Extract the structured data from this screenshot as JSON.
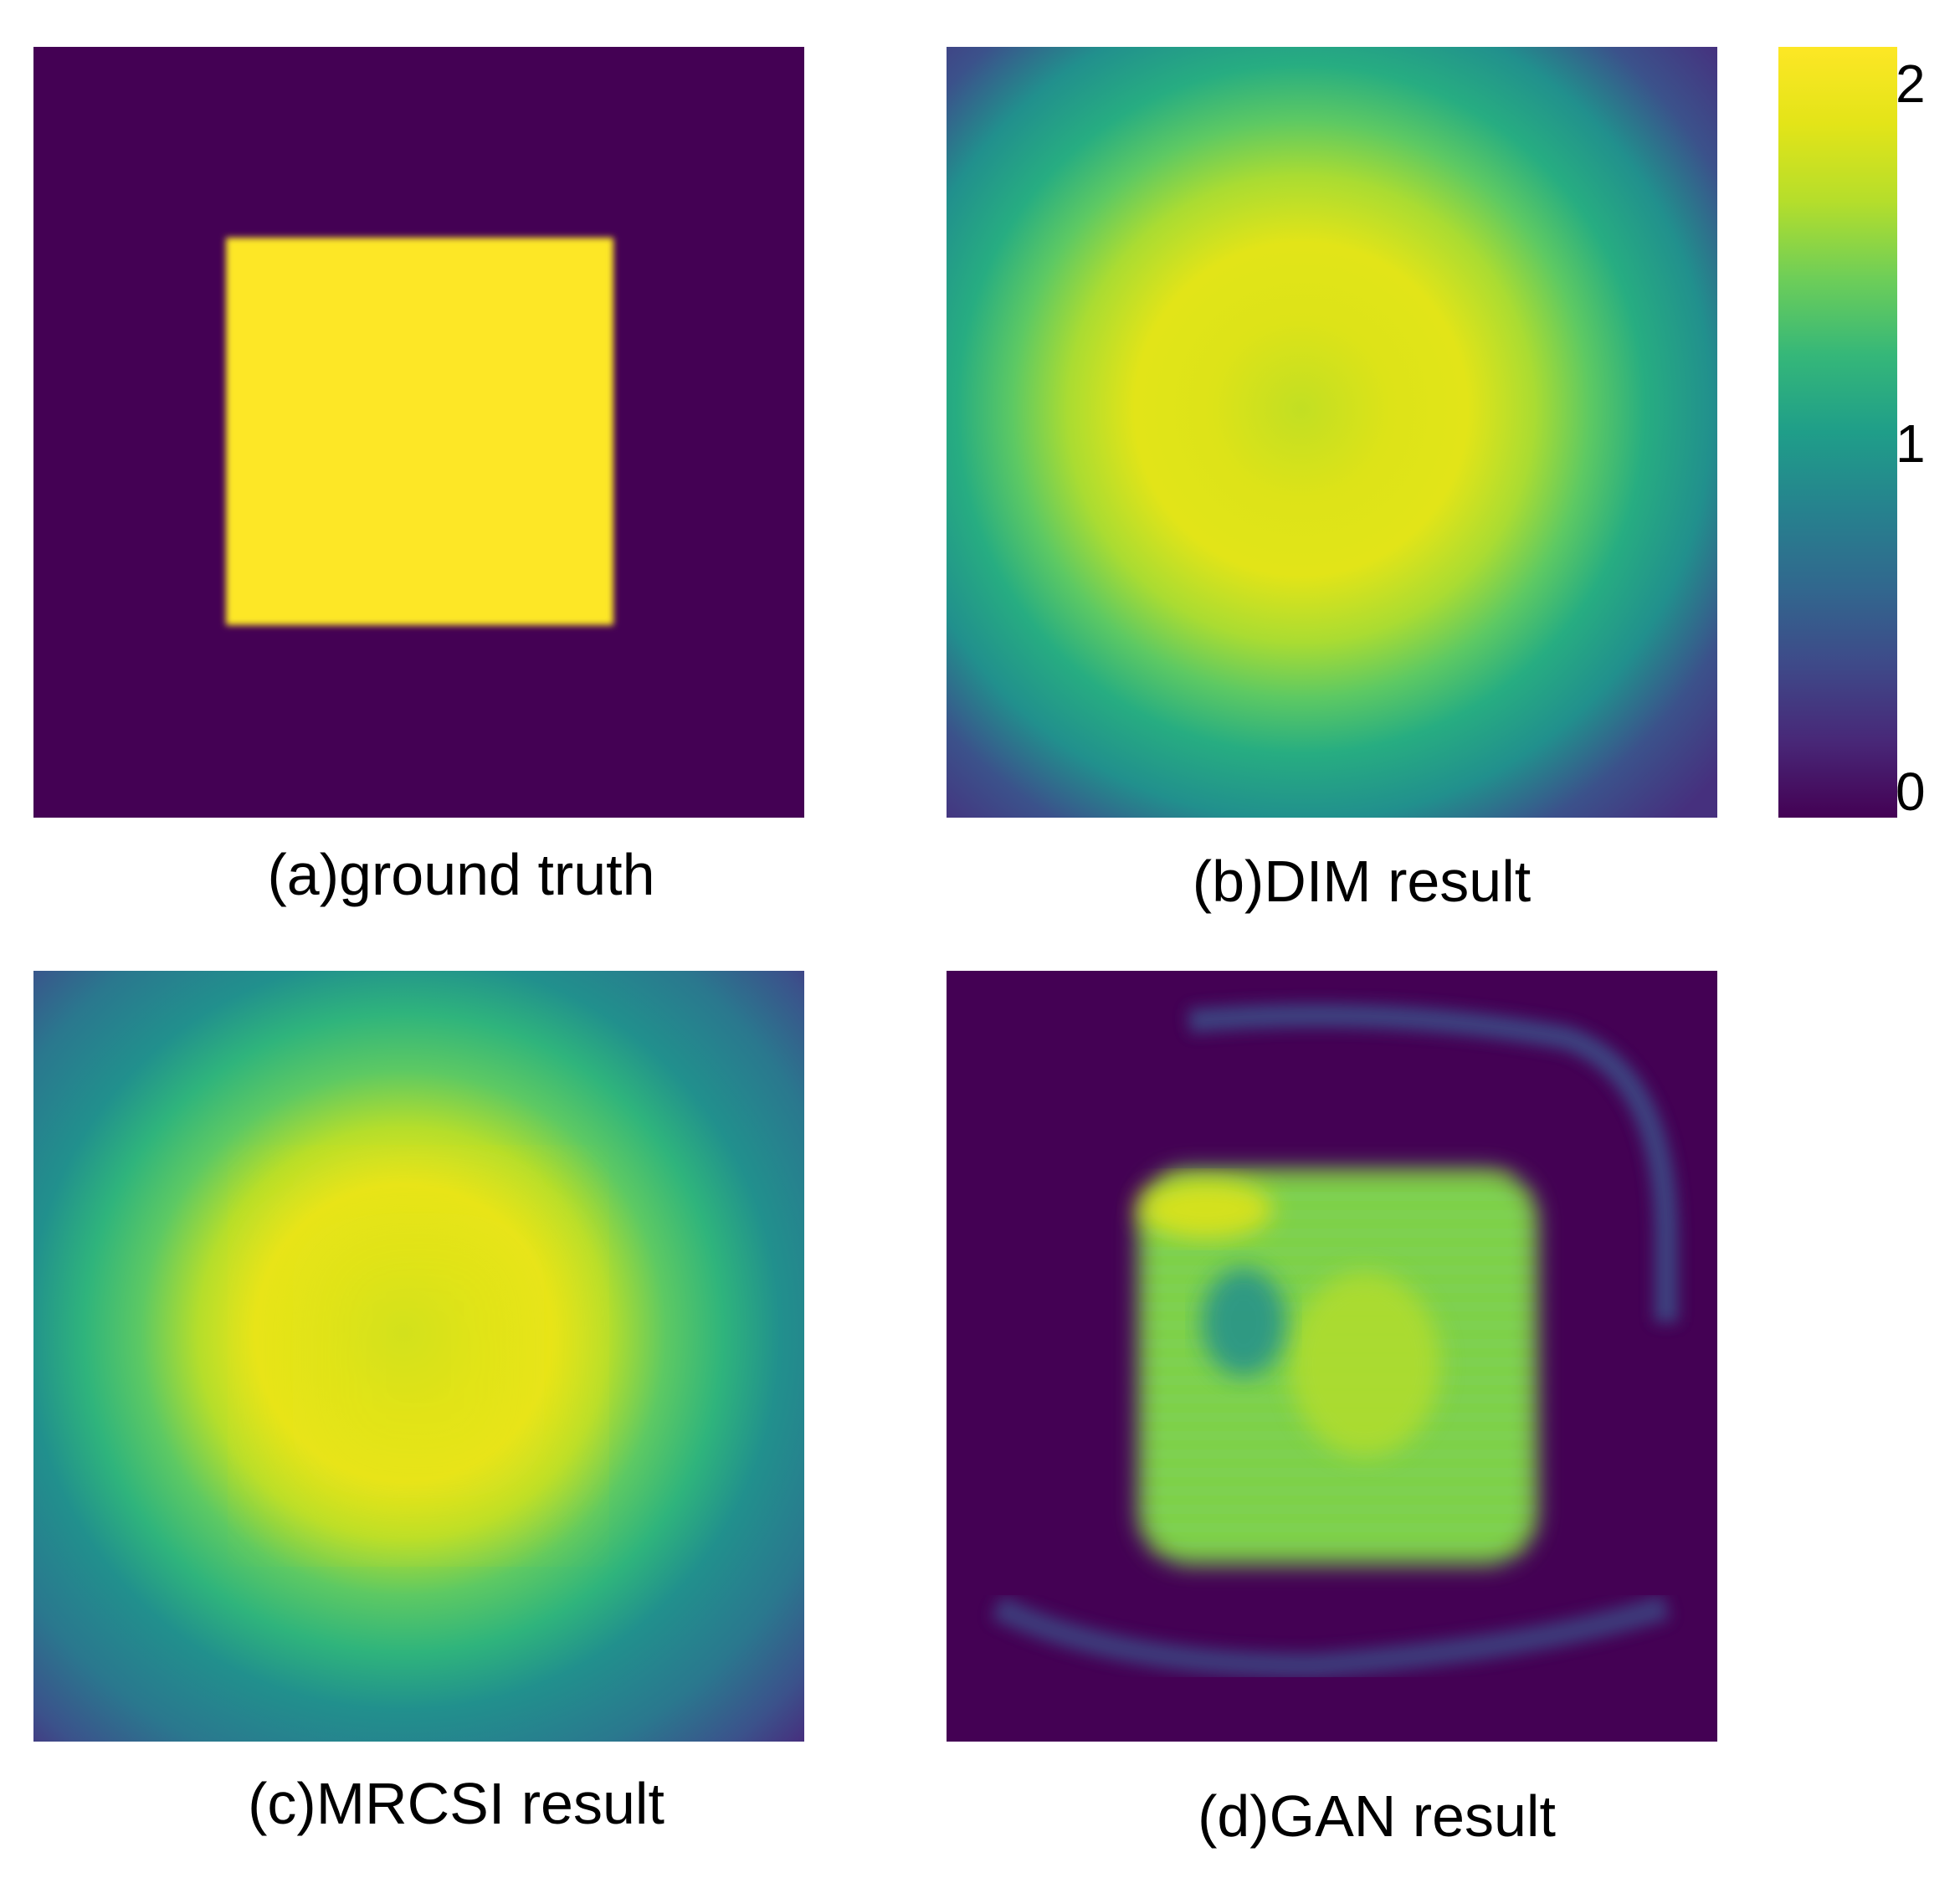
{
  "chart_data": [
    {
      "type": "heatmap",
      "caption": "(a)ground truth",
      "description_values": {
        "background": 0,
        "square": 2
      }
    },
    {
      "type": "heatmap",
      "caption": "(b)DIM result",
      "description_values": {
        "edge": 0.2,
        "center": 1.9
      }
    },
    {
      "type": "heatmap",
      "caption": "(c)MRCSI result",
      "description_values": {
        "edge": 0.3,
        "center": 1.85
      }
    },
    {
      "type": "heatmap",
      "caption": "(d)GAN result",
      "description_values": {
        "background": 0,
        "square": 1.6
      }
    }
  ],
  "colorbar": {
    "colormap": "viridis",
    "min": 0,
    "max": 2,
    "tick_labels": [
      "2",
      "1",
      "0"
    ],
    "colors": [
      "#440154",
      "#3b528b",
      "#21908d",
      "#5dc963",
      "#fde725"
    ]
  }
}
